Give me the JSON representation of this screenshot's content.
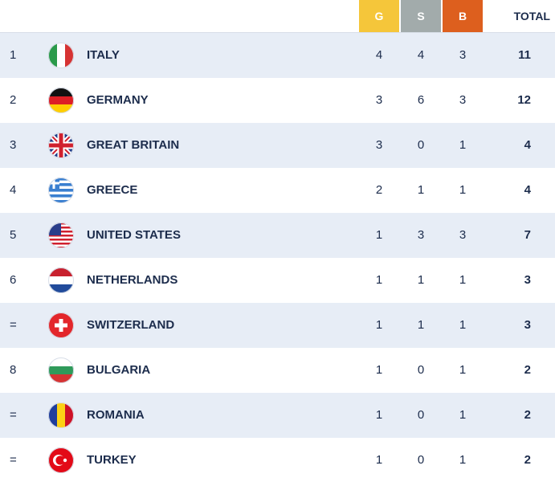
{
  "header": {
    "gold": "G",
    "silver": "S",
    "bronze": "B",
    "total": "TOTAL"
  },
  "table": {
    "rows": [
      [
        "1",
        "ITALY",
        4,
        4,
        3,
        11
      ],
      [
        "2",
        "GERMANY",
        3,
        6,
        3,
        12
      ],
      [
        "3",
        "GREAT BRITAIN",
        3,
        0,
        1,
        4
      ],
      [
        "4",
        "GREECE",
        2,
        1,
        1,
        4
      ],
      [
        "5",
        "UNITED STATES",
        1,
        3,
        3,
        7
      ],
      [
        "6",
        "NETHERLANDS",
        1,
        1,
        1,
        3
      ],
      [
        "=",
        "SWITZERLAND",
        1,
        1,
        1,
        3
      ],
      [
        "8",
        "BULGARIA",
        1,
        0,
        1,
        2
      ],
      [
        "=",
        "ROMANIA",
        1,
        0,
        1,
        2
      ],
      [
        "=",
        "TURKEY",
        1,
        0,
        1,
        2
      ]
    ]
  }
}
